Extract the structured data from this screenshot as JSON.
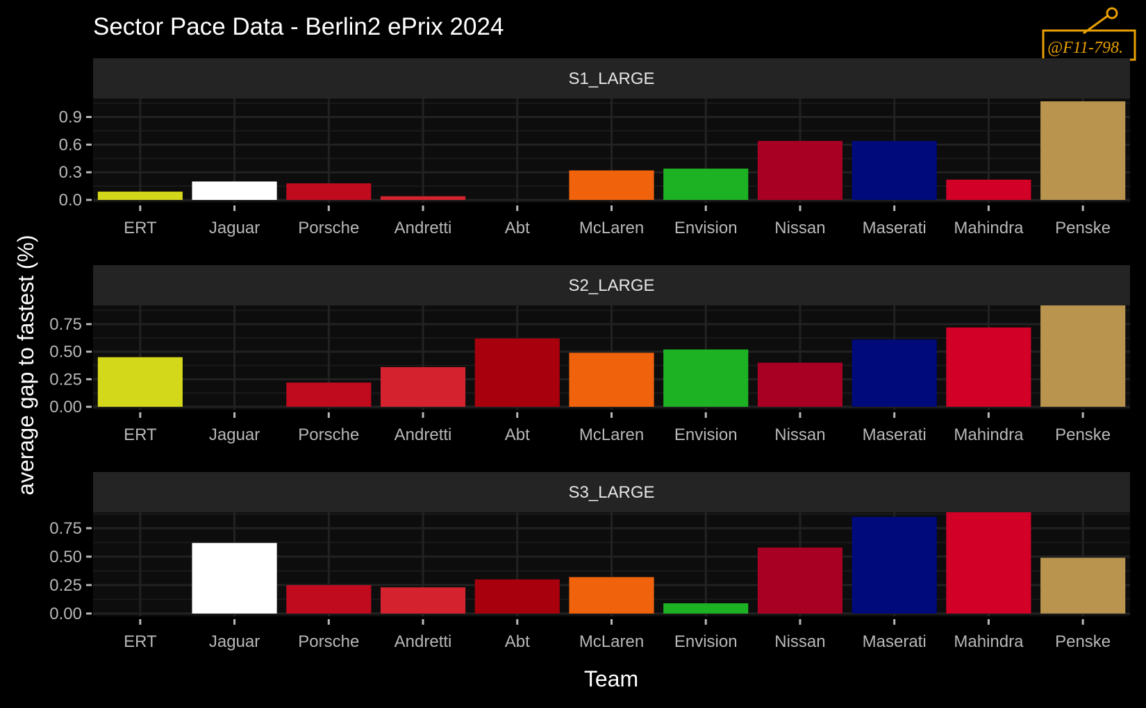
{
  "chart_data": {
    "type": "bar",
    "title": "Sector Pace Data - Berlin2 ePrix 2024",
    "xlabel": "Team",
    "ylabel": "average gap to fastest (%)",
    "watermark": "@F11-798.",
    "categories": [
      "ERT",
      "Jaguar",
      "Porsche",
      "Andretti",
      "Abt",
      "McLaren",
      "Envision",
      "Nissan",
      "Maserati",
      "Mahindra",
      "Penske"
    ],
    "team_colors": {
      "ERT": "#d4d81a",
      "Jaguar": "#ffffff",
      "Porsche": "#c00a1e",
      "Andretti": "#d4232e",
      "Abt": "#a8000c",
      "McLaren": "#f0620c",
      "Envision": "#1db223",
      "Nissan": "#a80022",
      "Maserati": "#000a7a",
      "Mahindra": "#d20026",
      "Penske": "#b8944e"
    },
    "panels": [
      {
        "strip": "S1_LARGE",
        "yticks": [
          "0.0",
          "0.3",
          "0.6",
          "0.9"
        ],
        "ylim": [
          -0.03,
          1.1
        ],
        "values": [
          0.09,
          0.2,
          0.18,
          0.04,
          0.0,
          0.32,
          0.34,
          0.64,
          0.64,
          0.22,
          1.07
        ]
      },
      {
        "strip": "S2_LARGE",
        "yticks": [
          "0.00",
          "0.25",
          "0.50",
          "0.75"
        ],
        "ylim": [
          -0.025,
          0.92
        ],
        "values": [
          0.45,
          0.0,
          0.22,
          0.36,
          0.62,
          0.49,
          0.52,
          0.4,
          0.61,
          0.72,
          0.92
        ]
      },
      {
        "strip": "S3_LARGE",
        "yticks": [
          "0.00",
          "0.25",
          "0.50",
          "0.75"
        ],
        "ylim": [
          -0.025,
          0.89
        ],
        "values": [
          0.0,
          0.62,
          0.25,
          0.23,
          0.3,
          0.32,
          0.09,
          0.58,
          0.85,
          0.89,
          0.49
        ]
      }
    ]
  }
}
